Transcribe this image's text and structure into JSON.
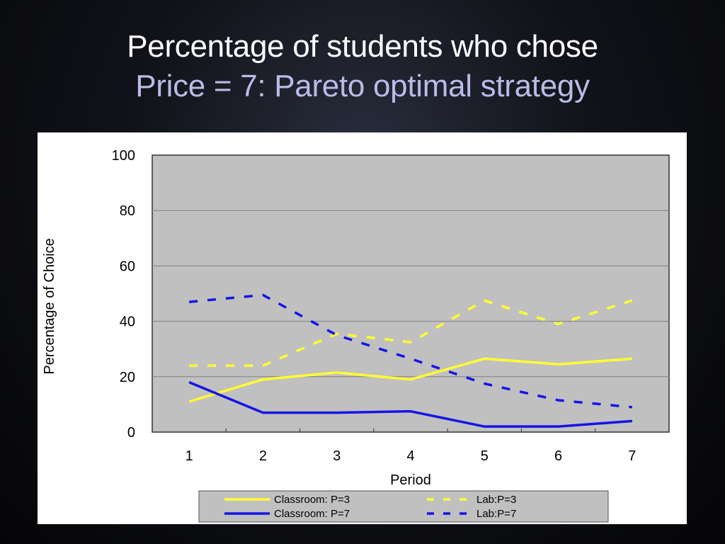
{
  "slide": {
    "title_line1": "Percentage of  students who chose",
    "title_line2": "Price = 7: Pareto optimal  strategy"
  },
  "colors": {
    "yellow": "#ffff33",
    "blue": "#1414e6",
    "plot_background": "#c0c0c0",
    "gridline": "#808080"
  },
  "chart_data": {
    "type": "line",
    "title": "",
    "xlabel": "Period",
    "ylabel": "Percentage of Choice",
    "x": [
      1,
      2,
      3,
      4,
      5,
      6,
      7
    ],
    "ylim": [
      0,
      100
    ],
    "yticks": [
      0,
      20,
      40,
      60,
      80,
      100
    ],
    "grid": true,
    "legend_position": "bottom",
    "series": [
      {
        "name": "Classroom: P=3",
        "values": [
          11,
          19,
          21.5,
          19,
          26.5,
          24.5,
          26.5
        ],
        "color": "#ffff33",
        "style": "solid"
      },
      {
        "name": "Classroom: P=7",
        "values": [
          18,
          7,
          7,
          7.5,
          2,
          2,
          4
        ],
        "color": "#1414e6",
        "style": "solid"
      },
      {
        "name": "Lab:P=3",
        "values": [
          24,
          24,
          35.5,
          32.5,
          47.5,
          39,
          47.5
        ],
        "color": "#ffff33",
        "style": "dashed"
      },
      {
        "name": "Lab:P=7",
        "values": [
          47,
          49.5,
          35,
          26.5,
          17.5,
          11.5,
          9
        ],
        "color": "#1414e6",
        "style": "dashed"
      }
    ]
  }
}
